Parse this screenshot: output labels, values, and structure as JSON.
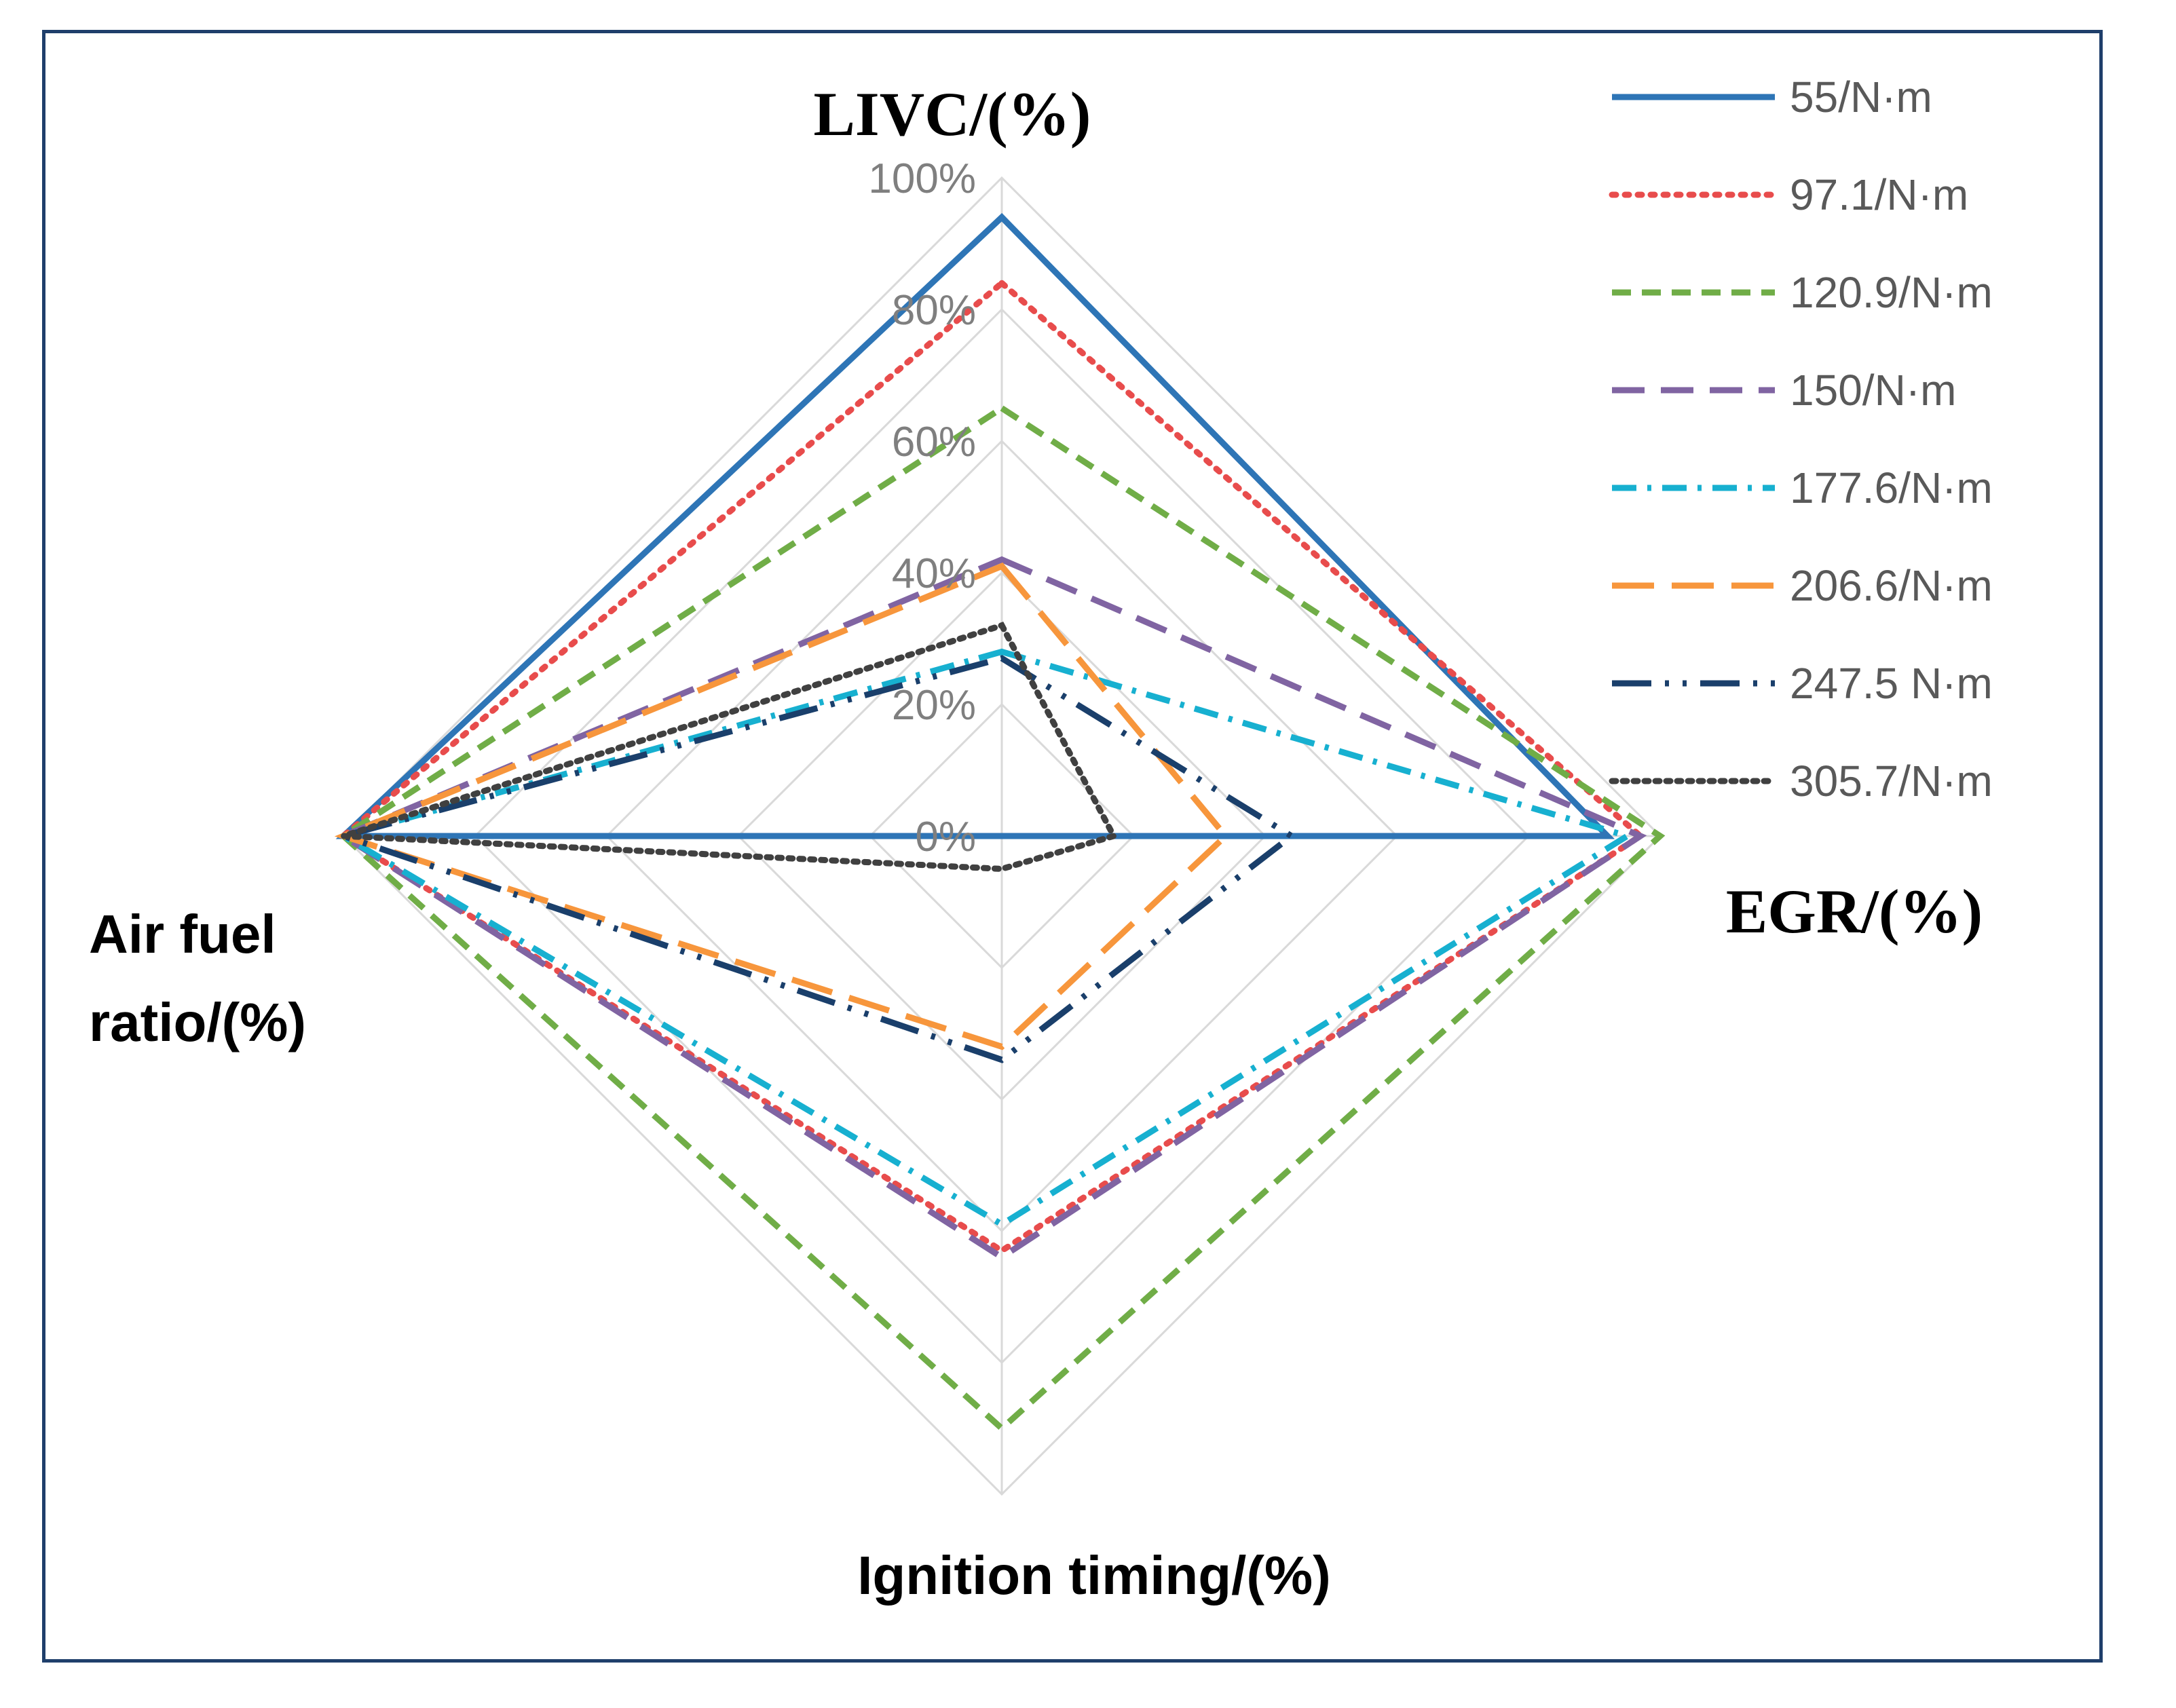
{
  "chart_data": {
    "type": "radar",
    "axes": [
      {
        "name": "LIVC",
        "label_lines": [
          "LIVC/(%)"
        ]
      },
      {
        "name": "EGR",
        "label_lines": [
          "EGR/(%)"
        ]
      },
      {
        "name": "Ignition timing",
        "label_lines": [
          "Ignition timing/(%)"
        ]
      },
      {
        "name": "Air fuel ratio",
        "label_lines": [
          "Air fuel",
          "ratio/(%)"
        ]
      }
    ],
    "ticks": [
      "0%",
      "20%",
      "40%",
      "60%",
      "80%",
      "100%"
    ],
    "tick_values": [
      0,
      20,
      40,
      60,
      80,
      100
    ],
    "range": [
      0,
      100
    ],
    "series": [
      {
        "name": "55/N·m",
        "values": [
          94,
          92,
          0,
          100
        ],
        "color": "#2e75b6",
        "dash": "solid"
      },
      {
        "name": "97.1/N·m",
        "values": [
          84,
          97,
          63,
          100
        ],
        "color": "#e84c4c",
        "dash": "dot"
      },
      {
        "name": "120.9/N·m",
        "values": [
          65,
          100,
          90,
          100
        ],
        "color": "#70ad47",
        "dash": "dash"
      },
      {
        "name": "150/N·m",
        "values": [
          42,
          97,
          64,
          100
        ],
        "color": "#8064a2",
        "dash": "longdash"
      },
      {
        "name": "177.6/N·m",
        "values": [
          28,
          95,
          59,
          100
        ],
        "color": "#17b0d0",
        "dash": "dashdot"
      },
      {
        "name": "206.6/N·m",
        "values": [
          41,
          34,
          32,
          100
        ],
        "color": "#f7963c",
        "dash": "longdash2"
      },
      {
        "name": "247.5 N·m",
        "values": [
          27,
          44,
          34,
          100
        ],
        "color": "#1a3f6b",
        "dash": "longdashdotdot"
      },
      {
        "name": "305.7/N·m",
        "values": [
          32,
          17,
          5,
          100
        ],
        "color": "#404040",
        "dash": "sysdot"
      }
    ]
  }
}
